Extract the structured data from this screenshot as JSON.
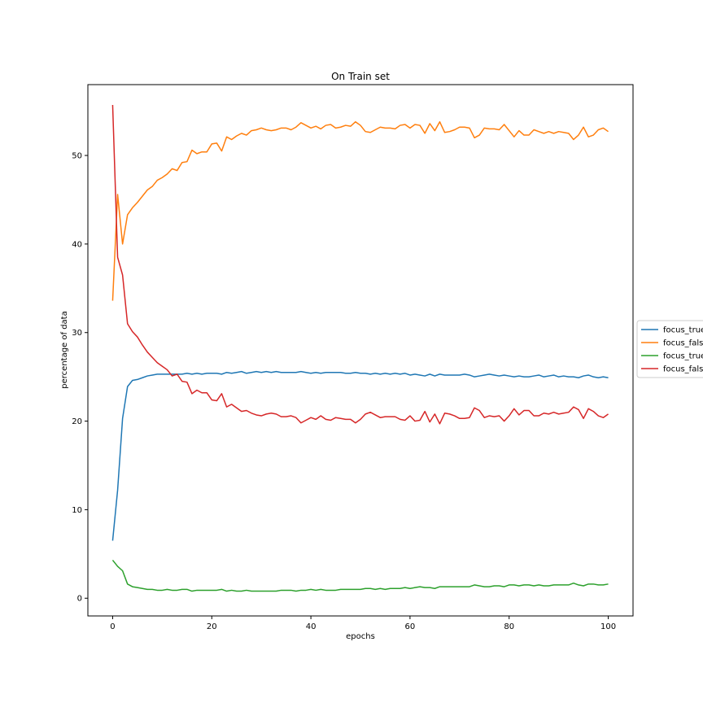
{
  "chart_data": {
    "type": "line",
    "title": "On Train set",
    "xlabel": "epochs",
    "ylabel": "percentage of data",
    "xlim": [
      -5,
      105
    ],
    "ylim": [
      -2,
      58
    ],
    "xticks": [
      0,
      20,
      40,
      60,
      80,
      100
    ],
    "yticks": [
      0,
      10,
      20,
      30,
      40,
      50
    ],
    "grid": false,
    "legend_position": "right, outside",
    "series": [
      {
        "name": "focus_true",
        "color": "#1f77b4",
        "values": [
          6.5,
          12.2,
          20.3,
          23.9,
          24.6,
          24.7,
          24.9,
          25.1,
          25.2,
          25.3,
          25.3,
          25.3,
          25.3,
          25.3,
          25.3,
          25.4,
          25.3,
          25.4,
          25.3,
          25.4,
          25.4,
          25.4,
          25.3,
          25.5,
          25.4,
          25.5,
          25.6,
          25.4,
          25.5,
          25.6,
          25.5,
          25.6,
          25.5,
          25.6,
          25.5,
          25.5,
          25.5,
          25.5,
          25.6,
          25.5,
          25.4,
          25.5,
          25.4,
          25.5,
          25.5,
          25.5,
          25.5,
          25.4,
          25.4,
          25.5,
          25.4,
          25.4,
          25.3,
          25.4,
          25.3,
          25.4,
          25.3,
          25.4,
          25.3,
          25.4,
          25.2,
          25.3,
          25.2,
          25.1,
          25.3,
          25.1,
          25.3,
          25.2,
          25.2,
          25.2,
          25.2,
          25.3,
          25.2,
          25.0,
          25.1,
          25.2,
          25.3,
          25.2,
          25.1,
          25.2,
          25.1,
          25.0,
          25.1,
          25.0,
          25.0,
          25.1,
          25.2,
          25.0,
          25.1,
          25.2,
          25.0,
          25.1,
          25.0,
          25.0,
          24.9,
          25.1,
          25.2,
          25.0,
          24.9,
          25.0,
          24.9
        ]
      },
      {
        "name": "focus_false",
        "color": "#ff7f0e",
        "values": [
          33.6,
          45.6,
          40.0,
          43.3,
          44.1,
          44.7,
          45.4,
          46.1,
          46.5,
          47.2,
          47.5,
          47.9,
          48.5,
          48.3,
          49.2,
          49.3,
          50.6,
          50.2,
          50.4,
          50.4,
          51.3,
          51.4,
          50.5,
          52.1,
          51.8,
          52.2,
          52.5,
          52.3,
          52.8,
          52.9,
          53.1,
          52.9,
          52.8,
          52.9,
          53.1,
          53.1,
          52.9,
          53.2,
          53.7,
          53.4,
          53.1,
          53.3,
          53.0,
          53.4,
          53.5,
          53.1,
          53.2,
          53.4,
          53.3,
          53.8,
          53.4,
          52.7,
          52.6,
          52.9,
          53.2,
          53.1,
          53.1,
          53.0,
          53.4,
          53.5,
          53.1,
          53.5,
          53.4,
          52.5,
          53.6,
          52.8,
          53.8,
          52.6,
          52.7,
          52.9,
          53.2,
          53.2,
          53.1,
          52.0,
          52.3,
          53.1,
          53.0,
          53.0,
          52.9,
          53.5,
          52.8,
          52.1,
          52.8,
          52.3,
          52.3,
          52.9,
          52.7,
          52.5,
          52.7,
          52.5,
          52.7,
          52.6,
          52.5,
          51.8,
          52.3,
          53.2,
          52.1,
          52.3,
          52.9,
          53.1,
          52.7
        ]
      },
      {
        "name": "focus_true",
        "color": "#2ca02c",
        "values": [
          4.3,
          3.6,
          3.1,
          1.6,
          1.3,
          1.2,
          1.1,
          1.0,
          1.0,
          0.9,
          0.9,
          1.0,
          0.9,
          0.9,
          1.0,
          1.0,
          0.8,
          0.9,
          0.9,
          0.9,
          0.9,
          0.9,
          1.0,
          0.8,
          0.9,
          0.8,
          0.8,
          0.9,
          0.8,
          0.8,
          0.8,
          0.8,
          0.8,
          0.8,
          0.9,
          0.9,
          0.9,
          0.8,
          0.9,
          0.9,
          1.0,
          0.9,
          1.0,
          0.9,
          0.9,
          0.9,
          1.0,
          1.0,
          1.0,
          1.0,
          1.0,
          1.1,
          1.1,
          1.0,
          1.1,
          1.0,
          1.1,
          1.1,
          1.1,
          1.2,
          1.1,
          1.2,
          1.3,
          1.2,
          1.2,
          1.1,
          1.3,
          1.3,
          1.3,
          1.3,
          1.3,
          1.3,
          1.3,
          1.5,
          1.4,
          1.3,
          1.3,
          1.4,
          1.4,
          1.3,
          1.5,
          1.5,
          1.4,
          1.5,
          1.5,
          1.4,
          1.5,
          1.4,
          1.4,
          1.5,
          1.5,
          1.5,
          1.5,
          1.7,
          1.5,
          1.4,
          1.6,
          1.6,
          1.5,
          1.5,
          1.6
        ]
      },
      {
        "name": "focus_false",
        "color": "#d62728",
        "values": [
          55.7,
          38.5,
          36.5,
          31.0,
          30.1,
          29.5,
          28.6,
          27.8,
          27.2,
          26.6,
          26.2,
          25.8,
          25.1,
          25.3,
          24.5,
          24.4,
          23.1,
          23.5,
          23.2,
          23.2,
          22.4,
          22.3,
          23.1,
          21.6,
          21.9,
          21.5,
          21.1,
          21.2,
          20.9,
          20.7,
          20.6,
          20.8,
          20.9,
          20.8,
          20.5,
          20.5,
          20.6,
          20.4,
          19.8,
          20.1,
          20.4,
          20.2,
          20.6,
          20.2,
          20.1,
          20.4,
          20.3,
          20.2,
          20.2,
          19.8,
          20.2,
          20.8,
          21.0,
          20.7,
          20.4,
          20.5,
          20.5,
          20.5,
          20.2,
          20.1,
          20.6,
          20.0,
          20.1,
          21.1,
          19.9,
          20.8,
          19.7,
          20.9,
          20.8,
          20.6,
          20.3,
          20.3,
          20.4,
          21.5,
          21.2,
          20.4,
          20.6,
          20.5,
          20.6,
          20.0,
          20.6,
          21.4,
          20.7,
          21.2,
          21.2,
          20.6,
          20.6,
          20.9,
          20.8,
          21.0,
          20.8,
          20.9,
          21.0,
          21.6,
          21.3,
          20.3,
          21.4,
          21.1,
          20.6,
          20.4,
          20.8
        ]
      }
    ]
  }
}
